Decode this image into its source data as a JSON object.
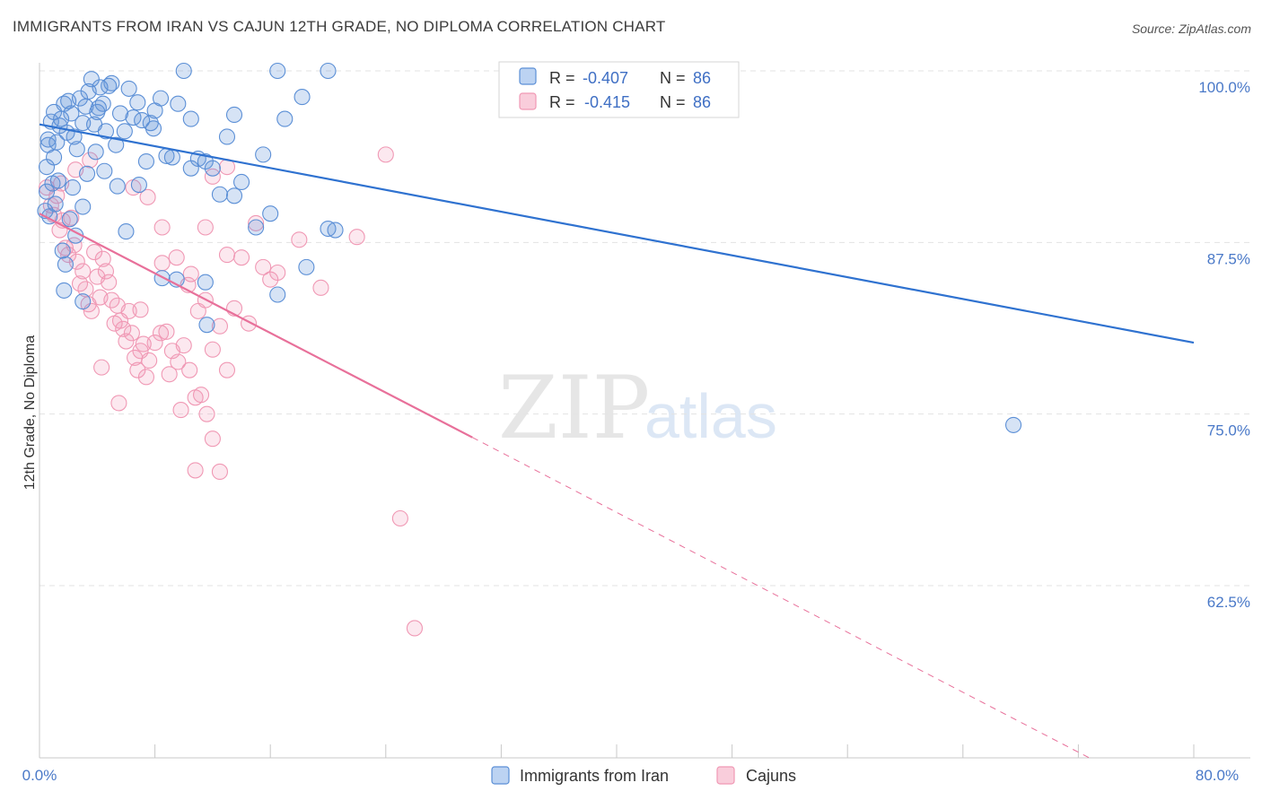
{
  "title": "IMMIGRANTS FROM IRAN VS CAJUN 12TH GRADE, NO DIPLOMA CORRELATION CHART",
  "source": "Source: ZipAtlas.com",
  "watermark": {
    "zip": "ZIP",
    "atlas": "atlas"
  },
  "colors": {
    "blue": "#5b8fd6",
    "blue_line": "#2f72d0",
    "pink": "#f098b4",
    "pink_line": "#e8709a",
    "grid": "#e3e3e3",
    "axis_text": "#4a79c8"
  },
  "legend": {
    "rows": [
      {
        "r_label": "R =",
        "r_value": "-0.407",
        "n_label": "N =",
        "n_value": "86",
        "series": "iran"
      },
      {
        "r_label": "R =",
        "r_value": "-0.415",
        "n_label": "N =",
        "n_value": "86",
        "series": "cajun"
      }
    ]
  },
  "bottom_legend": {
    "iran": "Immigrants from Iran",
    "cajun": "Cajuns"
  },
  "chart_data": {
    "type": "scatter",
    "title": "IMMIGRANTS FROM IRAN VS CAJUN 12TH GRADE, NO DIPLOMA CORRELATION CHART",
    "xlabel": "",
    "ylabel": "12th Grade, No Diploma",
    "xlim": [
      0,
      80
    ],
    "ylim": [
      50,
      100.5
    ],
    "x_tick_labels": {
      "left": "0.0%",
      "right": "80.0%"
    },
    "y_ticks": [
      {
        "value": 100.0,
        "label": "100.0%"
      },
      {
        "value": 87.5,
        "label": "87.5%"
      },
      {
        "value": 75.0,
        "label": "75.0%"
      },
      {
        "value": 62.5,
        "label": "62.5%"
      }
    ],
    "series": [
      {
        "name": "Immigrants from Iran",
        "r": -0.407,
        "n": 86,
        "trend": {
          "x": [
            0,
            80
          ],
          "y": [
            96.1,
            80.2
          ]
        },
        "points": [
          [
            0.5,
            93.0
          ],
          [
            0.6,
            95.0
          ],
          [
            0.8,
            96.3
          ],
          [
            1.0,
            97.0
          ],
          [
            1.2,
            94.8
          ],
          [
            1.4,
            96.0
          ],
          [
            1.5,
            96.5
          ],
          [
            1.7,
            97.6
          ],
          [
            1.9,
            95.5
          ],
          [
            2.0,
            97.8
          ],
          [
            2.2,
            96.9
          ],
          [
            2.4,
            95.2
          ],
          [
            2.6,
            94.3
          ],
          [
            2.8,
            98.0
          ],
          [
            3.0,
            96.2
          ],
          [
            3.2,
            97.4
          ],
          [
            3.4,
            98.5
          ],
          [
            3.6,
            99.4
          ],
          [
            3.8,
            96.1
          ],
          [
            4.0,
            97.0
          ],
          [
            4.2,
            98.8
          ],
          [
            4.4,
            97.6
          ],
          [
            4.6,
            95.6
          ],
          [
            4.8,
            98.9
          ],
          [
            5.0,
            99.1
          ],
          [
            5.3,
            94.6
          ],
          [
            5.6,
            96.9
          ],
          [
            5.9,
            95.6
          ],
          [
            6.2,
            98.7
          ],
          [
            6.5,
            96.6
          ],
          [
            6.8,
            97.7
          ],
          [
            7.1,
            96.4
          ],
          [
            7.4,
            93.4
          ],
          [
            7.7,
            96.2
          ],
          [
            8.0,
            97.1
          ],
          [
            8.4,
            98.0
          ],
          [
            8.8,
            93.8
          ],
          [
            9.2,
            93.7
          ],
          [
            9.6,
            97.6
          ],
          [
            10.0,
            100.0
          ],
          [
            10.5,
            92.9
          ],
          [
            11.0,
            93.6
          ],
          [
            11.5,
            93.4
          ],
          [
            12.0,
            92.9
          ],
          [
            12.5,
            91.0
          ],
          [
            13.0,
            95.2
          ],
          [
            13.5,
            96.8
          ],
          [
            14.0,
            91.9
          ],
          [
            15.5,
            93.9
          ],
          [
            16.5,
            100.0
          ],
          [
            17.0,
            96.5
          ],
          [
            18.2,
            98.1
          ],
          [
            20.0,
            100.0
          ],
          [
            0.4,
            89.8
          ],
          [
            0.5,
            91.2
          ],
          [
            0.7,
            89.4
          ],
          [
            0.9,
            91.8
          ],
          [
            1.1,
            90.3
          ],
          [
            1.3,
            92.0
          ],
          [
            1.6,
            86.9
          ],
          [
            1.8,
            85.9
          ],
          [
            2.1,
            89.2
          ],
          [
            2.3,
            91.5
          ],
          [
            2.5,
            88.0
          ],
          [
            3.0,
            90.1
          ],
          [
            3.3,
            92.5
          ],
          [
            5.4,
            91.6
          ],
          [
            6.0,
            88.3
          ],
          [
            9.5,
            84.8
          ],
          [
            11.5,
            84.6
          ],
          [
            13.5,
            90.9
          ],
          [
            15.0,
            88.6
          ],
          [
            16.0,
            89.6
          ],
          [
            16.5,
            83.7
          ],
          [
            18.5,
            85.7
          ],
          [
            20.0,
            88.5
          ],
          [
            20.5,
            88.4
          ],
          [
            0.6,
            94.6
          ],
          [
            1.0,
            93.7
          ],
          [
            3.9,
            94.1
          ],
          [
            4.1,
            97.3
          ],
          [
            6.9,
            91.7
          ],
          [
            7.9,
            95.8
          ],
          [
            1.7,
            84.0
          ],
          [
            3.0,
            83.2
          ],
          [
            11.6,
            81.5
          ],
          [
            8.5,
            84.9
          ],
          [
            10.5,
            96.5
          ],
          [
            67.5,
            74.2
          ],
          [
            4.5,
            92.7
          ]
        ]
      },
      {
        "name": "Cajuns",
        "r": -0.415,
        "n": 86,
        "trend": {
          "x": [
            0,
            30
          ],
          "y": [
            89.6,
            73.3
          ]
        },
        "trend_dashed": {
          "x": [
            30,
            80
          ],
          "y": [
            73.3,
            46.0
          ]
        },
        "points": [
          [
            0.5,
            91.5
          ],
          [
            0.8,
            90.2
          ],
          [
            1.0,
            89.5
          ],
          [
            1.2,
            90.9
          ],
          [
            1.4,
            88.4
          ],
          [
            1.6,
            89.1
          ],
          [
            1.8,
            87.1
          ],
          [
            2.0,
            86.6
          ],
          [
            2.2,
            89.3
          ],
          [
            2.4,
            87.3
          ],
          [
            2.6,
            86.1
          ],
          [
            2.8,
            84.5
          ],
          [
            3.0,
            85.4
          ],
          [
            3.2,
            84.1
          ],
          [
            3.4,
            83.0
          ],
          [
            3.6,
            82.5
          ],
          [
            3.8,
            86.8
          ],
          [
            4.0,
            85.0
          ],
          [
            4.2,
            83.5
          ],
          [
            4.4,
            86.3
          ],
          [
            4.6,
            85.4
          ],
          [
            4.8,
            84.6
          ],
          [
            5.0,
            83.3
          ],
          [
            5.2,
            81.6
          ],
          [
            5.4,
            82.9
          ],
          [
            5.6,
            81.8
          ],
          [
            5.8,
            81.2
          ],
          [
            6.0,
            80.3
          ],
          [
            6.2,
            82.5
          ],
          [
            6.4,
            80.9
          ],
          [
            6.6,
            79.1
          ],
          [
            6.8,
            78.2
          ],
          [
            7.0,
            79.6
          ],
          [
            7.2,
            80.1
          ],
          [
            7.4,
            77.7
          ],
          [
            7.6,
            78.9
          ],
          [
            8.0,
            80.2
          ],
          [
            8.4,
            80.9
          ],
          [
            8.8,
            81.0
          ],
          [
            9.2,
            79.6
          ],
          [
            9.6,
            78.8
          ],
          [
            10.0,
            80.0
          ],
          [
            10.4,
            78.2
          ],
          [
            10.8,
            76.2
          ],
          [
            11.2,
            76.4
          ],
          [
            11.6,
            75.0
          ],
          [
            12.0,
            73.2
          ],
          [
            12.5,
            70.8
          ],
          [
            13.0,
            93.0
          ],
          [
            15.0,
            88.9
          ],
          [
            16.0,
            84.8
          ],
          [
            18.0,
            87.7
          ],
          [
            22.0,
            87.9
          ],
          [
            24.0,
            93.9
          ],
          [
            25.0,
            67.4
          ],
          [
            26.0,
            59.4
          ],
          [
            6.5,
            91.5
          ],
          [
            7.5,
            90.8
          ],
          [
            8.5,
            88.6
          ],
          [
            9.5,
            86.4
          ],
          [
            10.5,
            85.2
          ],
          [
            11.5,
            83.3
          ],
          [
            12.5,
            81.4
          ],
          [
            13.5,
            82.7
          ],
          [
            14.5,
            81.6
          ],
          [
            10.3,
            84.4
          ],
          [
            11.0,
            82.5
          ],
          [
            12.0,
            79.7
          ],
          [
            13.0,
            78.2
          ],
          [
            9.0,
            77.9
          ],
          [
            9.8,
            75.3
          ],
          [
            4.3,
            78.4
          ],
          [
            5.5,
            75.8
          ],
          [
            11.5,
            88.6
          ],
          [
            2.5,
            92.8
          ],
          [
            3.5,
            93.5
          ],
          [
            1.5,
            91.8
          ],
          [
            12.0,
            92.3
          ],
          [
            7.0,
            82.6
          ],
          [
            8.5,
            86.0
          ],
          [
            13.0,
            86.6
          ],
          [
            14.0,
            86.4
          ],
          [
            15.5,
            85.7
          ],
          [
            16.5,
            85.3
          ],
          [
            19.5,
            84.2
          ],
          [
            10.8,
            70.9
          ]
        ]
      }
    ]
  }
}
